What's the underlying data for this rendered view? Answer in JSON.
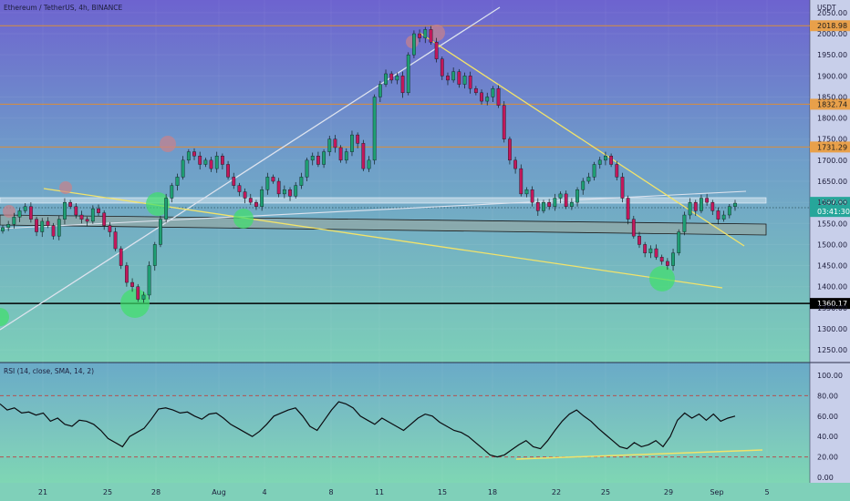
{
  "chart_data": {
    "type": "candlestick",
    "title": "Ethereum / TetherUS, 4h, BINANCE",
    "currency": "USDT",
    "x_labels": [
      "21",
      "25",
      "28",
      "Aug",
      "4",
      "8",
      "11",
      "15",
      "18",
      "22",
      "25",
      "29",
      "Sep",
      "5"
    ],
    "y_ticks": [
      "2050.00",
      "2000.00",
      "1950.00",
      "1900.00",
      "1850.00",
      "1800.00",
      "1750.00",
      "1700.00",
      "1650.00",
      "1600.00",
      "1550.00",
      "1500.00",
      "1450.00",
      "1400.00",
      "1350.00",
      "1300.00",
      "1250.00"
    ],
    "ylim": [
      1220,
      2080
    ],
    "horizontal_levels": [
      {
        "value": 2018.98,
        "label": "2018.98",
        "color": "#d98e3a"
      },
      {
        "value": 1832.74,
        "label": "1832.74",
        "color": "#d98e3a"
      },
      {
        "value": 1731.29,
        "label": "1731.29",
        "color": "#d98e3a"
      },
      {
        "value": 1360.17,
        "label": "1360.17",
        "color": "#000000"
      }
    ],
    "current_price": {
      "value": 1597.83,
      "label": "1597.83",
      "countdown": "03:41:30",
      "color": "#26a69a"
    },
    "close_series": [
      1540,
      1548,
      1565,
      1580,
      1590,
      1560,
      1530,
      1555,
      1545,
      1520,
      1560,
      1600,
      1590,
      1570,
      1560,
      1555,
      1585,
      1575,
      1545,
      1530,
      1490,
      1450,
      1410,
      1400,
      1370,
      1380,
      1450,
      1500,
      1560,
      1610,
      1640,
      1660,
      1700,
      1720,
      1710,
      1690,
      1700,
      1680,
      1710,
      1690,
      1660,
      1640,
      1625,
      1610,
      1600,
      1590,
      1630,
      1660,
      1650,
      1620,
      1630,
      1615,
      1640,
      1660,
      1700,
      1710,
      1690,
      1720,
      1750,
      1730,
      1700,
      1720,
      1760,
      1740,
      1680,
      1700,
      1850,
      1880,
      1905,
      1890,
      1900,
      1860,
      1950,
      2000,
      1990,
      2010,
      1980,
      1940,
      1900,
      1890,
      1910,
      1880,
      1900,
      1870,
      1860,
      1840,
      1850,
      1870,
      1830,
      1750,
      1700,
      1680,
      1620,
      1630,
      1600,
      1580,
      1600,
      1590,
      1610,
      1620,
      1590,
      1600,
      1630,
      1650,
      1660,
      1690,
      1700,
      1710,
      1690,
      1660,
      1610,
      1560,
      1520,
      1500,
      1480,
      1490,
      1470,
      1460,
      1450,
      1480,
      1530,
      1570,
      1600,
      1580,
      1610,
      1600,
      1580,
      1560,
      1570,
      1590,
      1598
    ],
    "rsi": {
      "title": "RSI (14, close, SMA, 14, 2)",
      "y_ticks": [
        "100.00",
        "80.00",
        "60.00",
        "40.00",
        "20.00",
        "0.00"
      ],
      "ylim": [
        0,
        100
      ],
      "upper_band": 80,
      "lower_band": 20,
      "values": [
        72,
        66,
        68,
        63,
        64,
        61,
        63,
        55,
        58,
        52,
        50,
        56,
        55,
        52,
        46,
        38,
        34,
        30,
        40,
        44,
        48,
        57,
        67,
        68,
        66,
        63,
        64,
        60,
        57,
        62,
        63,
        58,
        52,
        48,
        44,
        40,
        45,
        52,
        60,
        63,
        66,
        68,
        60,
        50,
        46,
        56,
        66,
        74,
        72,
        68,
        60,
        56,
        52,
        58,
        54,
        50,
        46,
        52,
        58,
        62,
        60,
        54,
        50,
        46,
        44,
        40,
        34,
        28,
        22,
        20,
        22,
        27,
        32,
        36,
        30,
        28,
        36,
        46,
        55,
        62,
        66,
        60,
        55,
        48,
        42,
        36,
        30,
        28,
        34,
        30,
        32,
        36,
        30,
        40,
        56,
        63,
        58,
        62,
        56,
        62,
        55,
        58,
        60
      ]
    }
  }
}
